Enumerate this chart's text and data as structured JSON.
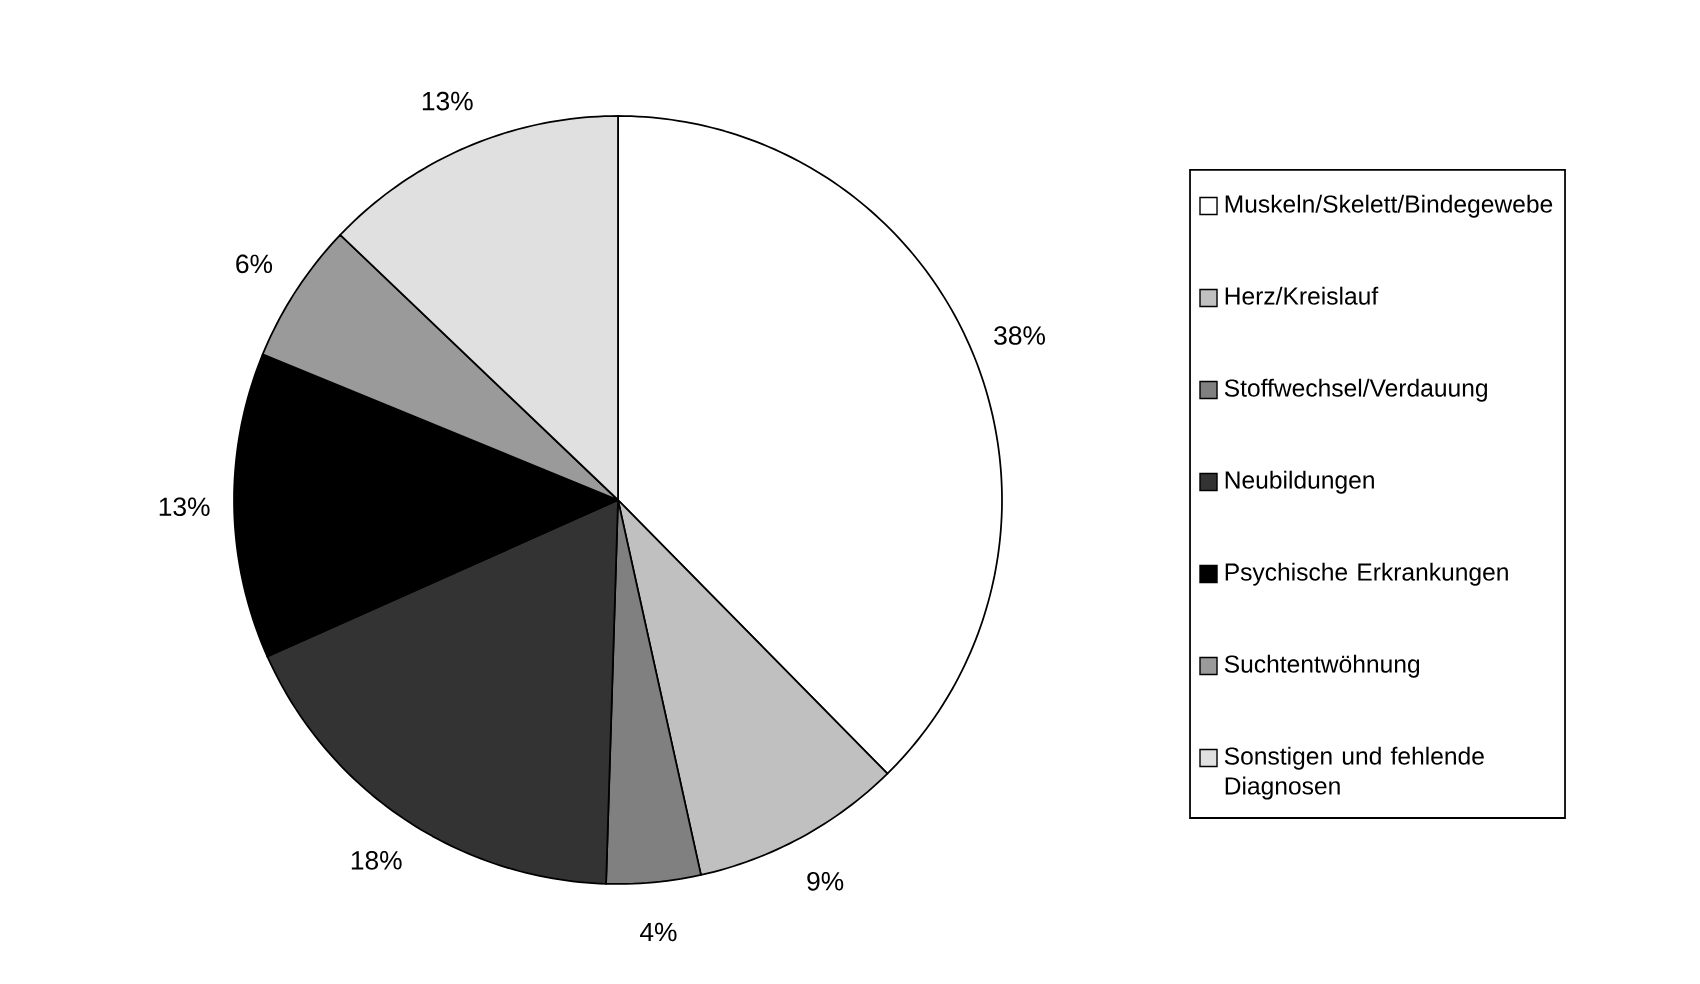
{
  "chart_data": {
    "type": "pie",
    "categories": [
      "Muskeln/Skelett/Bindegewebe",
      "Herz/Kreislauf",
      "Stoffwechsel/Verdauung",
      "Neubildungen",
      "Psychische Erkrankungen",
      "Suchtentwöhnung",
      "Sonstigen und fehlende Diagnosen"
    ],
    "values": [
      38,
      9,
      4,
      18,
      13,
      6,
      13
    ],
    "colors": [
      "#ffffff",
      "#c0c0c0",
      "#808080",
      "#333333",
      "#000000",
      "#9a9a9a",
      "#e0e0e0"
    ],
    "value_labels": [
      "38%",
      "9%",
      "4%",
      "18%",
      "13%",
      "6%",
      "13%"
    ],
    "legend": "right"
  }
}
